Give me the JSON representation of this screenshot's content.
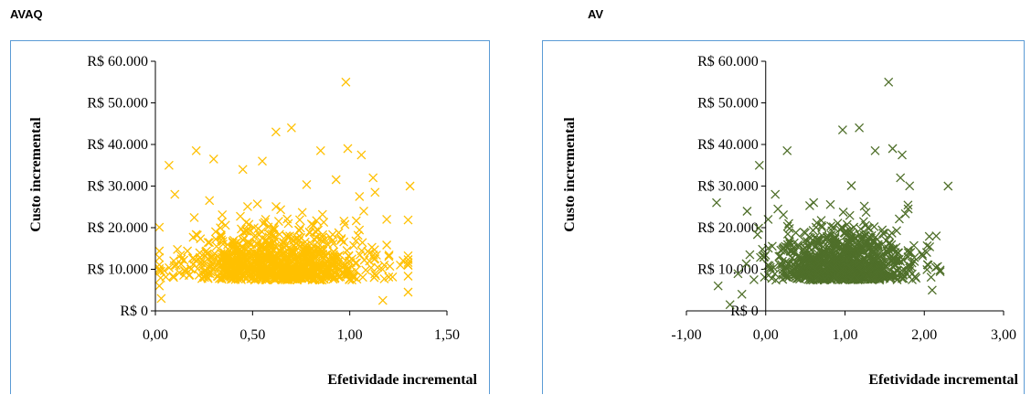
{
  "chart_data": [
    {
      "type": "scatter",
      "panel_label": "AVAQ",
      "xlabel": "Efetividade incremental",
      "ylabel": "Custo incremental",
      "xlim": [
        0,
        1.5
      ],
      "ylim": [
        0,
        60000
      ],
      "x_ticks": [
        "0,00",
        "0,50",
        "1,00",
        "1,50"
      ],
      "y_ticks": [
        "R$ 0",
        "R$ 10.000",
        "R$ 20.000",
        "R$ 30.000",
        "R$ 40.000",
        "R$ 50.000",
        "R$ 60.000"
      ],
      "marker": "x",
      "color": "#ffc000",
      "n_points": 1000,
      "points": [
        [
          0.98,
          55000
        ],
        [
          0.7,
          44000
        ],
        [
          0.62,
          43000
        ],
        [
          0.99,
          39000
        ],
        [
          0.85,
          38500
        ],
        [
          0.21,
          38500
        ],
        [
          0.07,
          35000
        ],
        [
          1.06,
          37500
        ],
        [
          1.12,
          32000
        ],
        [
          1.31,
          30000
        ],
        [
          0.55,
          36000
        ],
        [
          0.45,
          34000
        ],
        [
          0.3,
          36500
        ],
        [
          1.13,
          28500
        ],
        [
          1.05,
          27500
        ],
        [
          0.1,
          28000
        ],
        [
          0.02,
          6000
        ],
        [
          0.03,
          3000
        ],
        [
          1.3,
          4500
        ],
        [
          1.26,
          11000
        ],
        [
          1.19,
          22000
        ],
        [
          1.17,
          2500
        ]
      ],
      "cluster": {
        "x_mean": 0.62,
        "x_sd": 0.24,
        "y_mean": 9500,
        "y_sd": 6000,
        "x_range": [
          0.02,
          1.3
        ],
        "y_range": [
          1000,
          36000
        ]
      }
    },
    {
      "type": "scatter",
      "panel_label": "AV",
      "xlabel": "Efetividade incremental",
      "ylabel": "Custo incremental",
      "xlim": [
        -1.0,
        3.0
      ],
      "ylim": [
        0,
        60000
      ],
      "x_ticks": [
        "-1,00",
        "0,00",
        "1,00",
        "2,00",
        "3,00"
      ],
      "y_ticks": [
        "R$ 0",
        "R$ 10.000",
        "R$ 20.000",
        "R$ 30.000",
        "R$ 40.000",
        "R$ 50.000",
        "R$ 60.000"
      ],
      "marker": "x",
      "color": "#4f6f2a",
      "n_points": 1000,
      "points": [
        [
          1.55,
          55000
        ],
        [
          0.97,
          43500
        ],
        [
          1.18,
          44000
        ],
        [
          1.6,
          39000
        ],
        [
          1.38,
          38500
        ],
        [
          0.27,
          38500
        ],
        [
          -0.08,
          35000
        ],
        [
          1.72,
          37500
        ],
        [
          1.7,
          32000
        ],
        [
          2.3,
          30000
        ],
        [
          -0.62,
          26000
        ],
        [
          -0.6,
          6000
        ],
        [
          -0.2,
          13500
        ],
        [
          -0.3,
          4000
        ],
        [
          2.15,
          18000
        ],
        [
          2.05,
          11000
        ],
        [
          0.03,
          22000
        ],
        [
          0.12,
          28000
        ],
        [
          2.1,
          5000
        ],
        [
          -0.45,
          1500
        ]
      ],
      "cluster": {
        "x_mean": 1.0,
        "x_sd": 0.42,
        "y_mean": 9500,
        "y_sd": 6000,
        "x_range": [
          -0.35,
          2.2
        ],
        "y_range": [
          1000,
          36000
        ]
      }
    }
  ]
}
